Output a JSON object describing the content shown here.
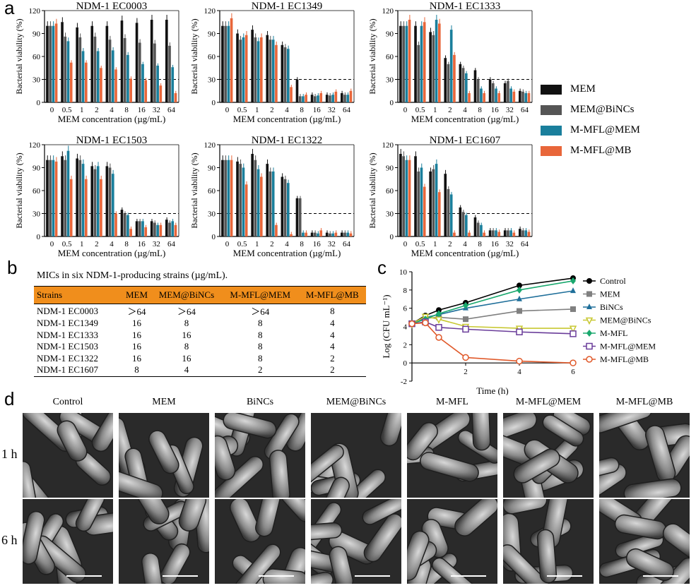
{
  "panel_a": {
    "letter": "a",
    "legend": [
      {
        "label": "MEM",
        "color": "#111111"
      },
      {
        "label": "MEM@BiNCs",
        "color": "#555555"
      },
      {
        "label": "M-MFL@MEM",
        "color": "#1a7f9c"
      },
      {
        "label": "M-MFL@MB",
        "color": "#e8663a"
      }
    ]
  },
  "chart_data": [
    {
      "type": "bar",
      "title": "NDM-1 EC0003",
      "xlabel": "MEM concentration (µg/mL)",
      "ylabel": "Bacterial viability (%)",
      "ylim": [
        0,
        120
      ],
      "yticks": [
        0,
        30,
        60,
        90,
        120
      ],
      "threshold": 30,
      "categories": [
        "0",
        "0.5",
        "1",
        "2",
        "4",
        "8",
        "16",
        "32",
        "64"
      ],
      "series": [
        {
          "name": "MEM",
          "values": [
            100,
            105,
            98,
            100,
            100,
            107,
            104,
            108,
            108
          ]
        },
        {
          "name": "MEM@BiNCs",
          "values": [
            100,
            86,
            85,
            86,
            82,
            84,
            78,
            77,
            74
          ]
        },
        {
          "name": "M-MFL@MEM",
          "values": [
            100,
            80,
            67,
            67,
            68,
            62,
            50,
            48,
            46
          ]
        },
        {
          "name": "M-MFL@MB",
          "values": [
            103,
            52,
            52,
            45,
            43,
            31,
            29,
            22,
            12
          ]
        }
      ]
    },
    {
      "type": "bar",
      "title": "NDM-1 EC1349",
      "xlabel": "MEM concentration (µg/mL)",
      "ylabel": "Bacterial viability (%)",
      "ylim": [
        0,
        120
      ],
      "yticks": [
        0,
        30,
        60,
        90,
        120
      ],
      "threshold": 30,
      "categories": [
        "0",
        "0.5",
        "1",
        "2",
        "4",
        "8",
        "16",
        "32",
        "64"
      ],
      "series": [
        {
          "name": "MEM",
          "values": [
            100,
            90,
            95,
            88,
            75,
            30,
            10,
            10,
            12
          ]
        },
        {
          "name": "MEM@BiNCs",
          "values": [
            100,
            82,
            85,
            82,
            72,
            8,
            8,
            9,
            10
          ]
        },
        {
          "name": "M-MFL@MEM",
          "values": [
            100,
            85,
            80,
            82,
            70,
            8,
            9,
            10,
            10
          ]
        },
        {
          "name": "M-MFL@MB",
          "values": [
            110,
            88,
            85,
            75,
            20,
            10,
            12,
            14,
            15
          ]
        }
      ]
    },
    {
      "type": "bar",
      "title": "NDM-1 EC1333",
      "xlabel": "MEM concentration (µg/mL)",
      "ylabel": "Bacterial viability (%)",
      "ylim": [
        0,
        120
      ],
      "yticks": [
        0,
        30,
        60,
        90,
        120
      ],
      "threshold": 30,
      "categories": [
        "0",
        "0.5",
        "1",
        "2",
        "4",
        "8",
        "16",
        "32",
        "64"
      ],
      "series": [
        {
          "name": "MEM",
          "values": [
            100,
            100,
            92,
            58,
            50,
            42,
            30,
            25,
            15
          ]
        },
        {
          "name": "MEM@BiNCs",
          "values": [
            100,
            75,
            88,
            50,
            45,
            30,
            25,
            28,
            14
          ]
        },
        {
          "name": "M-MFL@MEM",
          "values": [
            100,
            100,
            108,
            95,
            38,
            18,
            18,
            18,
            12
          ]
        },
        {
          "name": "M-MFL@MB",
          "values": [
            108,
            105,
            103,
            62,
            12,
            12,
            12,
            14,
            12
          ]
        }
      ]
    },
    {
      "type": "bar",
      "title": "NDM-1 EC1503",
      "xlabel": "MEM concentration (µg/mL)",
      "ylabel": "Bacterial viability (%)",
      "ylim": [
        0,
        120
      ],
      "yticks": [
        0,
        30,
        60,
        90,
        120
      ],
      "threshold": 30,
      "categories": [
        "0",
        "0.5",
        "1",
        "2",
        "4",
        "8",
        "16",
        "32",
        "64"
      ],
      "series": [
        {
          "name": "MEM",
          "values": [
            100,
            105,
            102,
            92,
            92,
            35,
            20,
            20,
            22
          ]
        },
        {
          "name": "MEM@BiNCs",
          "values": [
            100,
            100,
            100,
            88,
            90,
            30,
            20,
            18,
            18
          ]
        },
        {
          "name": "M-MFL@MEM",
          "values": [
            100,
            112,
            95,
            92,
            82,
            28,
            20,
            15,
            20
          ]
        },
        {
          "name": "M-MFL@MB",
          "values": [
            98,
            75,
            75,
            75,
            30,
            10,
            12,
            15,
            15
          ]
        }
      ]
    },
    {
      "type": "bar",
      "title": "NDM-1 EC1322",
      "xlabel": "MEM concentration (µg/mL)",
      "ylabel": "Bacterial viability (%)",
      "ylim": [
        0,
        120
      ],
      "yticks": [
        0,
        30,
        60,
        90,
        120
      ],
      "threshold": 30,
      "categories": [
        "0",
        "0.5",
        "1",
        "2",
        "4",
        "8",
        "16",
        "32",
        "64"
      ],
      "series": [
        {
          "name": "MEM",
          "values": [
            100,
            98,
            108,
            95,
            78,
            50,
            5,
            5,
            5
          ]
        },
        {
          "name": "MEM@BiNCs",
          "values": [
            100,
            95,
            100,
            85,
            75,
            50,
            5,
            4,
            5
          ]
        },
        {
          "name": "M-MFL@MEM",
          "values": [
            100,
            90,
            88,
            85,
            70,
            5,
            4,
            4,
            5
          ]
        },
        {
          "name": "M-MFL@MB",
          "values": [
            100,
            68,
            78,
            15,
            3,
            5,
            8,
            5,
            4
          ]
        }
      ]
    },
    {
      "type": "bar",
      "title": "NDM-1 EC1607",
      "xlabel": "MEM concentration (µg/mL)",
      "ylabel": "Bacterial viability (%)",
      "ylim": [
        0,
        120
      ],
      "yticks": [
        0,
        30,
        60,
        90,
        120
      ],
      "threshold": 30,
      "categories": [
        "0",
        "0.5",
        "1",
        "2",
        "4",
        "8",
        "16",
        "32",
        "64"
      ],
      "series": [
        {
          "name": "MEM",
          "values": [
            108,
            105,
            85,
            82,
            38,
            25,
            8,
            8,
            10
          ]
        },
        {
          "name": "MEM@BiNCs",
          "values": [
            105,
            85,
            88,
            62,
            32,
            18,
            8,
            8,
            8
          ]
        },
        {
          "name": "M-MFL@MEM",
          "values": [
            100,
            90,
            95,
            55,
            28,
            15,
            8,
            8,
            8
          ]
        },
        {
          "name": "M-MFL@MB",
          "values": [
            100,
            65,
            58,
            5,
            5,
            5,
            6,
            5,
            6
          ]
        }
      ]
    },
    {
      "type": "line",
      "xlabel": "Time (h)",
      "ylabel": "Log (CFU mL⁻¹)",
      "xlim": [
        0,
        6
      ],
      "ylim": [
        -2,
        10
      ],
      "xticks": [
        2,
        4,
        6
      ],
      "yticks": [
        -2,
        0,
        2,
        4,
        6,
        8,
        10
      ],
      "x": [
        0,
        0.5,
        1,
        2,
        4,
        6
      ],
      "series": [
        {
          "name": "Control",
          "color": "#000000",
          "marker": "circle",
          "values": [
            4.3,
            5.2,
            5.8,
            6.6,
            8.5,
            9.3
          ]
        },
        {
          "name": "MEM",
          "color": "#808080",
          "marker": "square",
          "values": [
            4.3,
            4.9,
            5.0,
            4.8,
            5.7,
            5.9
          ]
        },
        {
          "name": "BiNCs",
          "color": "#1f6f9a",
          "marker": "triangle",
          "values": [
            4.3,
            5.0,
            5.3,
            6.0,
            7.0,
            7.9
          ]
        },
        {
          "name": "MEM@BiNCs",
          "color": "#c8c832",
          "marker": "tri-down",
          "values": [
            4.3,
            5.1,
            4.8,
            4.0,
            3.8,
            3.8
          ]
        },
        {
          "name": "M-MFL",
          "color": "#1aa86e",
          "marker": "diamond",
          "values": [
            4.3,
            4.8,
            5.4,
            6.3,
            8.0,
            9.0
          ]
        },
        {
          "name": "M-MFL@MEM",
          "color": "#6a3d9a",
          "marker": "open-square",
          "values": [
            4.3,
            4.5,
            3.9,
            3.7,
            3.4,
            3.2
          ]
        },
        {
          "name": "M-MFL@MB",
          "color": "#e0592a",
          "marker": "open-circle",
          "values": [
            4.3,
            4.4,
            2.8,
            0.6,
            0.2,
            0.0
          ]
        }
      ]
    }
  ],
  "panel_b": {
    "letter": "b",
    "caption": "MICs in six NDM-1-producing strains (µg/mL).",
    "headers": [
      "Strains",
      "MEM",
      "MEM@BiNCs",
      "M-MFL@MEM",
      "M-MFL@MB"
    ],
    "rows": [
      [
        "NDM-1 EC0003",
        "＞64",
        "＞64",
        "＞64",
        "8"
      ],
      [
        "NDM-1 EC1349",
        "16",
        "8",
        "8",
        "4"
      ],
      [
        "NDM-1 EC1333",
        "16",
        "16",
        "8",
        "4"
      ],
      [
        "NDM-1 EC1503",
        "16",
        "8",
        "8",
        "4"
      ],
      [
        "NDM-1 EC1322",
        "16",
        "16",
        "8",
        "2"
      ],
      [
        "NDM-1 EC1607",
        "8",
        "4",
        "2",
        "2"
      ]
    ]
  },
  "panel_c": {
    "letter": "c"
  },
  "panel_d": {
    "letter": "d",
    "columns": [
      "Control",
      "MEM",
      "BiNCs",
      "MEM@BiNCs",
      "M-MFL",
      "M-MFL@MEM",
      "M-MFL@MB"
    ],
    "rows": [
      "1 h",
      "6 h"
    ]
  }
}
